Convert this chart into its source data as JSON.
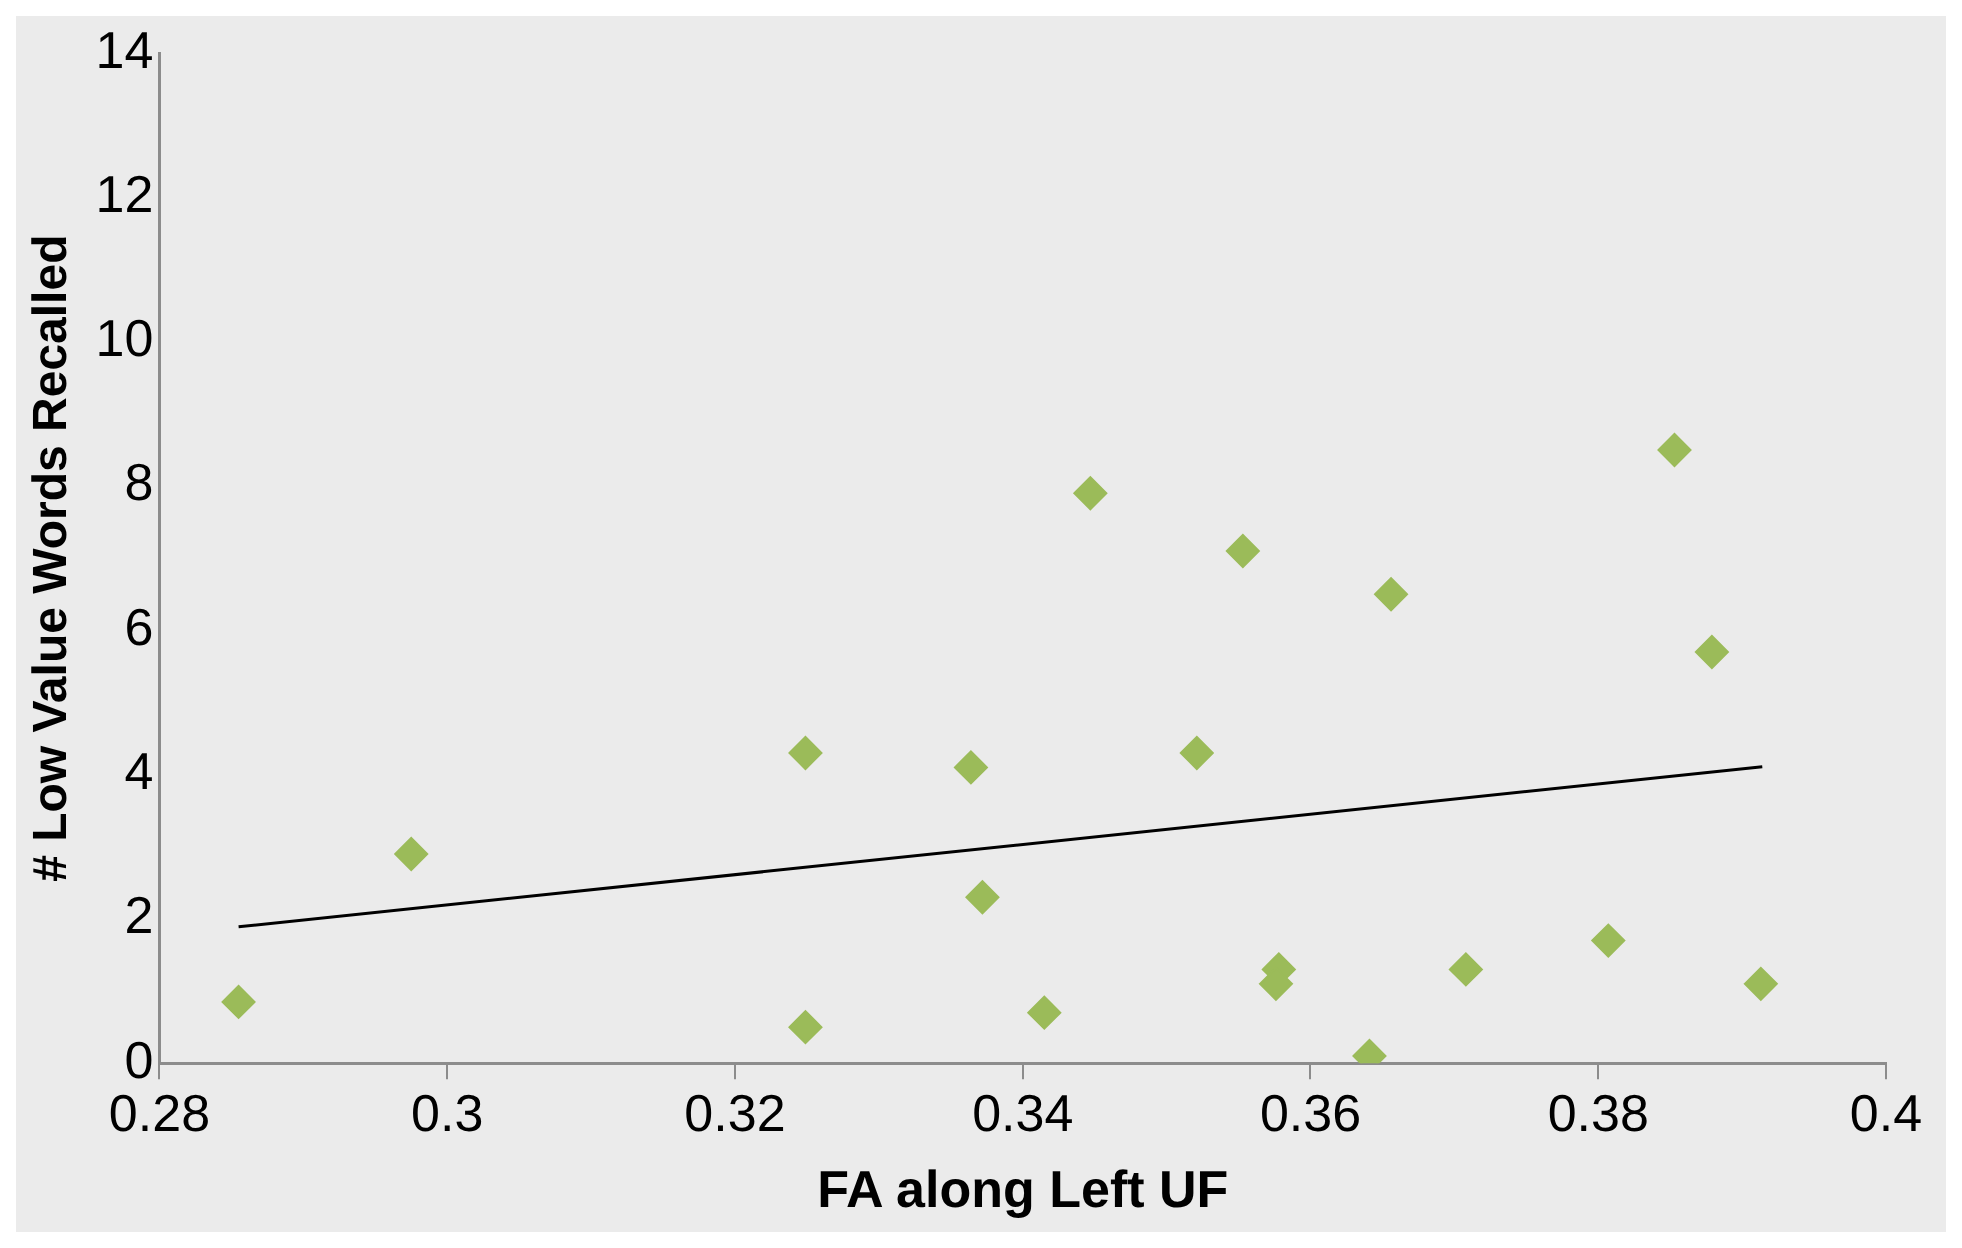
{
  "chart_data": {
    "type": "scatter",
    "xlabel": "FA along Left UF",
    "ylabel": "# Low Value Words Recalled",
    "xlim": [
      0.28,
      0.4
    ],
    "xticks": [
      0.28,
      0.3,
      0.32,
      0.34,
      0.36,
      0.38,
      0.4
    ],
    "ylim": [
      0,
      14
    ],
    "yticks": [
      0,
      2,
      4,
      6,
      8,
      10,
      12,
      14
    ],
    "grid": false,
    "legend": false,
    "marker": "diamond",
    "series": [
      {
        "color": "#9bbb59",
        "x": [
          0.2855,
          0.2975,
          0.3249,
          0.3249,
          0.3364,
          0.3372,
          0.3415,
          0.3447,
          0.3521,
          0.3553,
          0.3578,
          0.3576,
          0.3641,
          0.3656,
          0.3708,
          0.3807,
          0.3853,
          0.3879,
          0.3913
        ],
        "values": [
          0.85,
          2.9,
          4.3,
          0.5,
          4.1,
          2.3,
          0.7,
          7.9,
          4.3,
          7.1,
          1.3,
          1.1,
          0.1,
          6.5,
          1.3,
          1.7,
          8.5,
          5.7,
          1.1
        ]
      },
      {
        "type": "line",
        "color": "#000000",
        "marker": "none",
        "x": [
          0.2855,
          0.3914
        ],
        "values": [
          1.89,
          4.11
        ]
      }
    ]
  }
}
